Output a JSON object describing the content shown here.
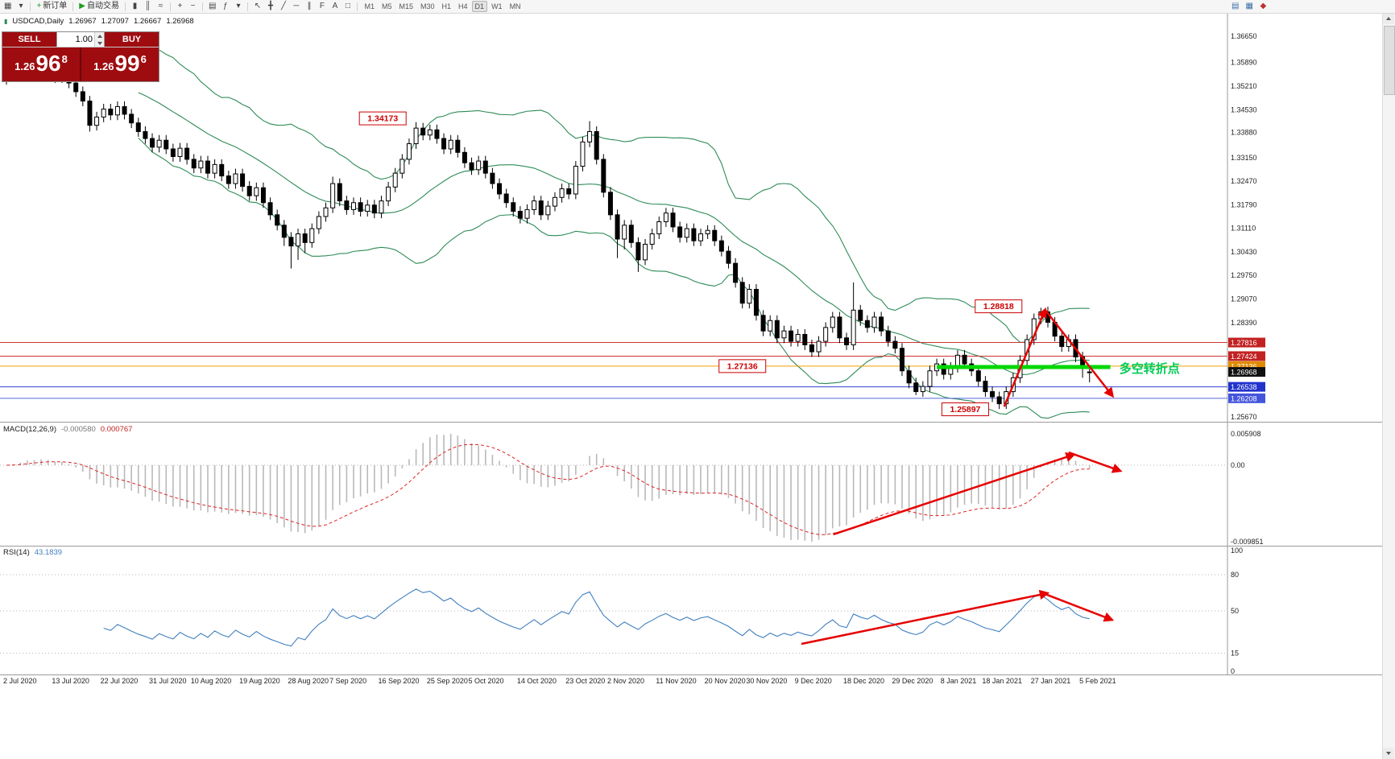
{
  "toolbar": {
    "items": [
      {
        "g": "▦",
        "n": "new-chart-button"
      },
      {
        "g": "▾",
        "n": "chart-profiles-dropdown"
      },
      {
        "sep": true
      },
      {
        "g": "+",
        "c": "#1f9d1f",
        "label": "新订单",
        "n": "new-order-button"
      },
      {
        "sep": true
      },
      {
        "g": "▶",
        "c": "#1f9d1f",
        "label": "自动交易",
        "n": "autotrading-button"
      },
      {
        "sep": true
      },
      {
        "g": "▮",
        "n": "candlestick-chart-button"
      },
      {
        "g": "║",
        "n": "bar-chart-button"
      },
      {
        "g": "≈",
        "n": "line-chart-button"
      },
      {
        "sep": true
      },
      {
        "g": "+",
        "n": "zoom-in-button"
      },
      {
        "g": "−",
        "n": "zoom-out-button"
      },
      {
        "sep": true
      },
      {
        "g": "▤",
        "n": "tile-windows-button"
      },
      {
        "g": "ƒ",
        "n": "indicators-button"
      },
      {
        "g": "▾",
        "n": "indicators-dropdown"
      },
      {
        "sep": true
      },
      {
        "g": "↖",
        "n": "cursor-button"
      },
      {
        "g": "╋",
        "n": "crosshair-button"
      },
      {
        "g": "╱",
        "n": "trendline-button"
      },
      {
        "g": "─",
        "n": "horizontal-line-button"
      },
      {
        "g": "∥",
        "n": "equidistant-channel-button"
      },
      {
        "g": "F",
        "n": "fibonacci-button"
      },
      {
        "g": "A",
        "n": "text-label-button"
      },
      {
        "g": "□",
        "n": "shapes-button"
      },
      {
        "sep": true
      }
    ],
    "timeframes": [
      "M1",
      "M5",
      "M15",
      "M30",
      "H1",
      "H4",
      "D1",
      "W1",
      "MN"
    ],
    "active_timeframe": "D1",
    "right_items": [
      {
        "g": "▤",
        "c": "#3a6ea5",
        "n": "market-watch-button"
      },
      {
        "g": "▦",
        "c": "#3a6ea5",
        "n": "data-window-button"
      },
      {
        "g": "◆",
        "c": "#c03030",
        "n": "alerts-button"
      }
    ]
  },
  "symbol_info": {
    "glyph": "▮",
    "pair": "USDCAD,Daily",
    "open": "1.26967",
    "high": "1.27097",
    "low": "1.26667",
    "close": "1.26968"
  },
  "trade_panel": {
    "sell_label": "SELL",
    "buy_label": "BUY",
    "volume": "1.00",
    "bid_prefix": "1.26",
    "bid_big": "96",
    "bid_sup": "8",
    "ask_prefix": "1.26",
    "ask_big": "99",
    "ask_sup": "6"
  },
  "chart_data": {
    "type": "candlestick",
    "symbol": "USDCAD",
    "timeframe": "Daily",
    "title": "USDCAD,Daily",
    "annotation_color": "#e60000",
    "candles": [
      [
        1.354,
        1.3563,
        1.3525,
        1.3548
      ],
      [
        1.3548,
        1.3577,
        1.3533,
        1.3562
      ],
      [
        1.3562,
        1.3593,
        1.3547,
        1.3578
      ],
      [
        1.3578,
        1.3606,
        1.3563,
        1.3591
      ],
      [
        1.3591,
        1.3606,
        1.3555,
        1.357
      ],
      [
        1.357,
        1.3598,
        1.3555,
        1.3583
      ],
      [
        1.3583,
        1.3598,
        1.3546,
        1.3561
      ],
      [
        1.3561,
        1.3576,
        1.353,
        1.3545
      ],
      [
        1.3545,
        1.3573,
        1.353,
        1.3558
      ],
      [
        1.3558,
        1.3573,
        1.3515,
        1.353
      ],
      [
        1.353,
        1.3545,
        1.349,
        1.3505
      ],
      [
        1.3505,
        1.352,
        1.3463,
        1.3478
      ],
      [
        1.3478,
        1.3493,
        1.339,
        1.3408
      ],
      [
        1.3408,
        1.3447,
        1.3393,
        1.3432
      ],
      [
        1.3432,
        1.347,
        1.3417,
        1.3455
      ],
      [
        1.3455,
        1.347,
        1.3423,
        1.3438
      ],
      [
        1.3438,
        1.3477,
        1.3423,
        1.3462
      ],
      [
        1.3462,
        1.3477,
        1.3425,
        1.344
      ],
      [
        1.344,
        1.3455,
        1.34,
        1.3415
      ],
      [
        1.3415,
        1.343,
        1.3375,
        1.339
      ],
      [
        1.339,
        1.3405,
        1.3355,
        1.337
      ],
      [
        1.337,
        1.3385,
        1.333,
        1.3345
      ],
      [
        1.3345,
        1.338,
        1.333,
        1.3365
      ],
      [
        1.3365,
        1.338,
        1.3325,
        1.334
      ],
      [
        1.334,
        1.3355,
        1.3303,
        1.3318
      ],
      [
        1.3318,
        1.3357,
        1.3303,
        1.3342
      ],
      [
        1.3342,
        1.3357,
        1.3295,
        1.331
      ],
      [
        1.331,
        1.3325,
        1.327,
        1.3285
      ],
      [
        1.3285,
        1.332,
        1.327,
        1.3305
      ],
      [
        1.3305,
        1.332,
        1.3255,
        1.327
      ],
      [
        1.327,
        1.331,
        1.3255,
        1.3295
      ],
      [
        1.3295,
        1.331,
        1.3247,
        1.3262
      ],
      [
        1.3262,
        1.3277,
        1.3225,
        1.324
      ],
      [
        1.324,
        1.3283,
        1.3225,
        1.3268
      ],
      [
        1.3268,
        1.3283,
        1.3217,
        1.3232
      ],
      [
        1.3232,
        1.3247,
        1.319,
        1.3205
      ],
      [
        1.3205,
        1.3243,
        1.319,
        1.3228
      ],
      [
        1.3228,
        1.3243,
        1.317,
        1.3185
      ],
      [
        1.3185,
        1.32,
        1.3135,
        1.315
      ],
      [
        1.315,
        1.3165,
        1.3105,
        1.312
      ],
      [
        1.312,
        1.3135,
        1.306,
        1.3085
      ],
      [
        1.3085,
        1.31,
        1.2995,
        1.306
      ],
      [
        1.306,
        1.311,
        1.302,
        1.3095
      ],
      [
        1.3095,
        1.311,
        1.304,
        1.307
      ],
      [
        1.307,
        1.3125,
        1.3055,
        1.311
      ],
      [
        1.311,
        1.316,
        1.3095,
        1.3145
      ],
      [
        1.3145,
        1.3185,
        1.313,
        1.317
      ],
      [
        1.317,
        1.326,
        1.3155,
        1.324
      ],
      [
        1.324,
        1.3255,
        1.3175,
        1.319
      ],
      [
        1.319,
        1.3205,
        1.315,
        1.3165
      ],
      [
        1.3165,
        1.32,
        1.315,
        1.3185
      ],
      [
        1.3185,
        1.32,
        1.3145,
        1.316
      ],
      [
        1.316,
        1.3193,
        1.3145,
        1.3178
      ],
      [
        1.3178,
        1.3193,
        1.314,
        1.3155
      ],
      [
        1.3155,
        1.3205,
        1.314,
        1.319
      ],
      [
        1.319,
        1.3245,
        1.3175,
        1.323
      ],
      [
        1.323,
        1.3285,
        1.3215,
        1.327
      ],
      [
        1.327,
        1.3325,
        1.3255,
        1.331
      ],
      [
        1.331,
        1.337,
        1.3295,
        1.3355
      ],
      [
        1.3355,
        1.34173,
        1.334,
        1.34
      ],
      [
        1.34,
        1.3415,
        1.3365,
        1.338
      ],
      [
        1.338,
        1.341,
        1.3365,
        1.3395
      ],
      [
        1.3395,
        1.341,
        1.3355,
        1.337
      ],
      [
        1.337,
        1.3385,
        1.3325,
        1.334
      ],
      [
        1.334,
        1.338,
        1.3325,
        1.3365
      ],
      [
        1.3365,
        1.338,
        1.3315,
        1.333
      ],
      [
        1.333,
        1.3345,
        1.3285,
        1.33
      ],
      [
        1.33,
        1.3315,
        1.3265,
        1.328
      ],
      [
        1.328,
        1.332,
        1.3265,
        1.3305
      ],
      [
        1.3305,
        1.332,
        1.3255,
        1.327
      ],
      [
        1.327,
        1.3285,
        1.3225,
        1.324
      ],
      [
        1.324,
        1.3255,
        1.3195,
        1.321
      ],
      [
        1.321,
        1.3225,
        1.317,
        1.3185
      ],
      [
        1.3185,
        1.32,
        1.3145,
        1.316
      ],
      [
        1.316,
        1.3175,
        1.3125,
        1.314
      ],
      [
        1.314,
        1.318,
        1.3125,
        1.3165
      ],
      [
        1.3165,
        1.3205,
        1.315,
        1.319
      ],
      [
        1.319,
        1.3205,
        1.3135,
        1.315
      ],
      [
        1.315,
        1.319,
        1.3135,
        1.3175
      ],
      [
        1.3175,
        1.3215,
        1.316,
        1.32
      ],
      [
        1.32,
        1.324,
        1.3185,
        1.3225
      ],
      [
        1.3225,
        1.324,
        1.3195,
        1.321
      ],
      [
        1.321,
        1.3305,
        1.3195,
        1.329
      ],
      [
        1.329,
        1.3375,
        1.3275,
        1.336
      ],
      [
        1.336,
        1.342,
        1.3345,
        1.339
      ],
      [
        1.339,
        1.3405,
        1.3295,
        1.331
      ],
      [
        1.331,
        1.3325,
        1.32,
        1.3215
      ],
      [
        1.3215,
        1.323,
        1.3135,
        1.315
      ],
      [
        1.315,
        1.3165,
        1.3025,
        1.308
      ],
      [
        1.308,
        1.3135,
        1.305,
        1.312
      ],
      [
        1.312,
        1.3135,
        1.3055,
        1.307
      ],
      [
        1.307,
        1.3085,
        1.2985,
        1.302
      ],
      [
        1.302,
        1.308,
        1.3005,
        1.3065
      ],
      [
        1.3065,
        1.311,
        1.305,
        1.3095
      ],
      [
        1.3095,
        1.3145,
        1.308,
        1.313
      ],
      [
        1.313,
        1.317,
        1.3115,
        1.3155
      ],
      [
        1.3155,
        1.317,
        1.31,
        1.3115
      ],
      [
        1.3115,
        1.313,
        1.307,
        1.3085
      ],
      [
        1.3085,
        1.3125,
        1.307,
        1.311
      ],
      [
        1.311,
        1.3125,
        1.306,
        1.3075
      ],
      [
        1.3075,
        1.311,
        1.306,
        1.3095
      ],
      [
        1.3095,
        1.312,
        1.308,
        1.3105
      ],
      [
        1.3105,
        1.312,
        1.306,
        1.3075
      ],
      [
        1.3075,
        1.309,
        1.303,
        1.3045
      ],
      [
        1.3045,
        1.306,
        1.2995,
        1.301
      ],
      [
        1.301,
        1.3025,
        1.294,
        1.2955
      ],
      [
        1.2955,
        1.297,
        1.288,
        1.2895
      ],
      [
        1.2895,
        1.295,
        1.288,
        1.2935
      ],
      [
        1.2935,
        1.295,
        1.2845,
        1.286
      ],
      [
        1.286,
        1.2875,
        1.28,
        1.2815
      ],
      [
        1.2815,
        1.286,
        1.28,
        1.2845
      ],
      [
        1.2845,
        1.286,
        1.278,
        1.2795
      ],
      [
        1.2795,
        1.283,
        1.278,
        1.2815
      ],
      [
        1.2815,
        1.283,
        1.277,
        1.2785
      ],
      [
        1.2785,
        1.282,
        1.277,
        1.2805
      ],
      [
        1.2805,
        1.282,
        1.276,
        1.2775
      ],
      [
        1.2775,
        1.279,
        1.274,
        1.2755
      ],
      [
        1.2755,
        1.28,
        1.274,
        1.2785
      ],
      [
        1.2785,
        1.284,
        1.277,
        1.2825
      ],
      [
        1.2825,
        1.287,
        1.281,
        1.2855
      ],
      [
        1.2855,
        1.287,
        1.278,
        1.2795
      ],
      [
        1.2795,
        1.281,
        1.276,
        1.2775
      ],
      [
        1.2775,
        1.2955,
        1.276,
        1.2875
      ],
      [
        1.2875,
        1.289,
        1.283,
        1.2845
      ],
      [
        1.2845,
        1.286,
        1.281,
        1.2825
      ],
      [
        1.2825,
        1.287,
        1.281,
        1.2855
      ],
      [
        1.2855,
        1.287,
        1.28,
        1.2815
      ],
      [
        1.2815,
        1.283,
        1.277,
        1.2785
      ],
      [
        1.2785,
        1.28,
        1.275,
        1.2765
      ],
      [
        1.2765,
        1.278,
        1.2685,
        1.27
      ],
      [
        1.27,
        1.2715,
        1.265,
        1.2665
      ],
      [
        1.2665,
        1.268,
        1.263,
        1.264
      ],
      [
        1.264,
        1.267,
        1.2625,
        1.2655
      ],
      [
        1.2655,
        1.2715,
        1.264,
        1.27
      ],
      [
        1.27,
        1.2735,
        1.2685,
        1.272
      ],
      [
        1.272,
        1.2735,
        1.2675,
        1.269
      ],
      [
        1.269,
        1.2725,
        1.2675,
        1.271
      ],
      [
        1.271,
        1.276,
        1.2695,
        1.2745
      ],
      [
        1.2745,
        1.276,
        1.2705,
        1.272
      ],
      [
        1.272,
        1.2735,
        1.2685,
        1.27
      ],
      [
        1.27,
        1.2715,
        1.2655,
        1.267
      ],
      [
        1.267,
        1.2685,
        1.2625,
        1.264
      ],
      [
        1.264,
        1.2655,
        1.261,
        1.2625
      ],
      [
        1.2625,
        1.264,
        1.25897,
        1.2605
      ],
      [
        1.2605,
        1.2655,
        1.259,
        1.264
      ],
      [
        1.264,
        1.2695,
        1.2625,
        1.268
      ],
      [
        1.268,
        1.2745,
        1.2665,
        1.273
      ],
      [
        1.273,
        1.2805,
        1.2715,
        1.279
      ],
      [
        1.279,
        1.2865,
        1.2775,
        1.285
      ],
      [
        1.285,
        1.28818,
        1.2835,
        1.287
      ],
      [
        1.287,
        1.2885,
        1.2825,
        1.284
      ],
      [
        1.284,
        1.2855,
        1.2785,
        1.28
      ],
      [
        1.28,
        1.2815,
        1.2755,
        1.277
      ],
      [
        1.277,
        1.2805,
        1.2755,
        1.279
      ],
      [
        1.279,
        1.2805,
        1.2725,
        1.274
      ],
      [
        1.274,
        1.2755,
        1.268,
        1.271
      ],
      [
        1.26967,
        1.27097,
        1.26667,
        1.26968
      ]
    ],
    "x_axis": {
      "labels": [
        [
          "2 Jul 2020",
          0
        ],
        [
          "13 Jul 2020",
          7
        ],
        [
          "22 Jul 2020",
          14
        ],
        [
          "31 Jul 2020",
          21
        ],
        [
          "10 Aug 2020",
          27
        ],
        [
          "19 Aug 2020",
          34
        ],
        [
          "28 Aug 2020",
          41
        ],
        [
          "7 Sep 2020",
          47
        ],
        [
          "16 Sep 2020",
          54
        ],
        [
          "25 Sep 2020",
          61
        ],
        [
          "5 Oct 2020",
          67
        ],
        [
          "14 Oct 2020",
          74
        ],
        [
          "23 Oct 2020",
          81
        ],
        [
          "2 Nov 2020",
          87
        ],
        [
          "11 Nov 2020",
          94
        ],
        [
          "20 Nov 2020",
          101
        ],
        [
          "30 Nov 2020",
          107
        ],
        [
          "9 Dec 2020",
          114
        ],
        [
          "18 Dec 2020",
          121
        ],
        [
          "29 Dec 2020",
          128
        ],
        [
          "8 Jan 2021",
          135
        ],
        [
          "18 Jan 2021",
          141
        ],
        [
          "27 Jan 2021",
          148
        ],
        [
          "5 Feb 2021",
          155
        ]
      ]
    },
    "y_axis": {
      "price_at_top": 1.37323,
      "price_at_bottom": 1.25531,
      "ticks": [
        "1.36650",
        "1.35890",
        "1.35210",
        "1.34530",
        "1.33880",
        "1.33150",
        "1.32470",
        "1.31790",
        "1.31110",
        "1.30430",
        "1.29750",
        "1.29070",
        "1.28390",
        "1.25670"
      ]
    },
    "bollinger": {
      "period": 20,
      "deviation": 2,
      "color": "#2e8b57"
    },
    "price_lines": [
      {
        "price": 1.27816,
        "line_color": "#cc3333",
        "label": "1.27816",
        "label_bg": "#c22222"
      },
      {
        "price": 1.27424,
        "line_color": "#cc3333",
        "label": "1.27424",
        "label_bg": "#c22222"
      },
      {
        "price": 1.27136,
        "line_color": "#f0a000",
        "label": "1.27136",
        "label_bg": "#e08b00"
      },
      {
        "price": 1.26538,
        "line_color": "#3344cc",
        "label": "1.26538",
        "label_bg": "#2233cc"
      },
      {
        "price": 1.26208,
        "line_color": "#5566dd",
        "label": "1.26208",
        "label_bg": "#4455dd"
      }
    ],
    "current_price": {
      "price": 1.26968,
      "label": "1.26968",
      "label_bg": "#111111"
    },
    "callouts": [
      {
        "text": "1.34173",
        "i": 54.2,
        "price": 1.3428
      },
      {
        "text": "1.28818",
        "i": 142.9,
        "price": 1.2886
      },
      {
        "text": "1.27136",
        "i": 106.0,
        "price": 1.27136
      },
      {
        "text": "1.25897",
        "i": 138.1,
        "price": 1.2589
      }
    ],
    "trend_arrows": [
      {
        "i1": 143.7,
        "p1": 1.2597,
        "i2": 149.6,
        "p2": 1.2876
      },
      {
        "i1": 149.6,
        "p1": 1.2876,
        "i2": 159.3,
        "p2": 1.2628
      }
    ],
    "turning_point": {
      "segment": {
        "i1": 134,
        "i2": 159,
        "price": 1.2711,
        "color": "#00d800"
      },
      "label": {
        "text": "多空转折点",
        "i": 160.3,
        "price": 1.2695,
        "color": "#00cc55"
      }
    },
    "macd": {
      "label": "MACD(12,26,9)",
      "main_value": "-0.000580",
      "signal_value": "0.000767",
      "axis_top": "0.005908",
      "axis_zero": "0.00",
      "axis_bottom": "-0.009851",
      "params": {
        "fast": 12,
        "slow": 26,
        "signal": 9
      },
      "arrows": [
        {
          "i1": 119.1,
          "f1": 0.908,
          "i2": 153.7,
          "f2": 0.261
        },
        {
          "i1": 153.0,
          "f1": 0.242,
          "i2": 160.4,
          "f2": 0.392
        }
      ]
    },
    "rsi": {
      "label": "RSI(14)",
      "value": "43.1839",
      "period": 14,
      "levels": [
        80,
        50,
        15
      ],
      "axis_labels": [
        "100",
        "80",
        "50",
        "15",
        "0"
      ],
      "axis_values": [
        100,
        80,
        50,
        15,
        0
      ],
      "arrows": [
        {
          "i1": 114.5,
          "f1": 0.7625,
          "i2": 149.9,
          "f2": 0.369
        },
        {
          "i1": 149.3,
          "f1": 0.369,
          "i2": 159.2,
          "f2": 0.575
        }
      ]
    }
  }
}
